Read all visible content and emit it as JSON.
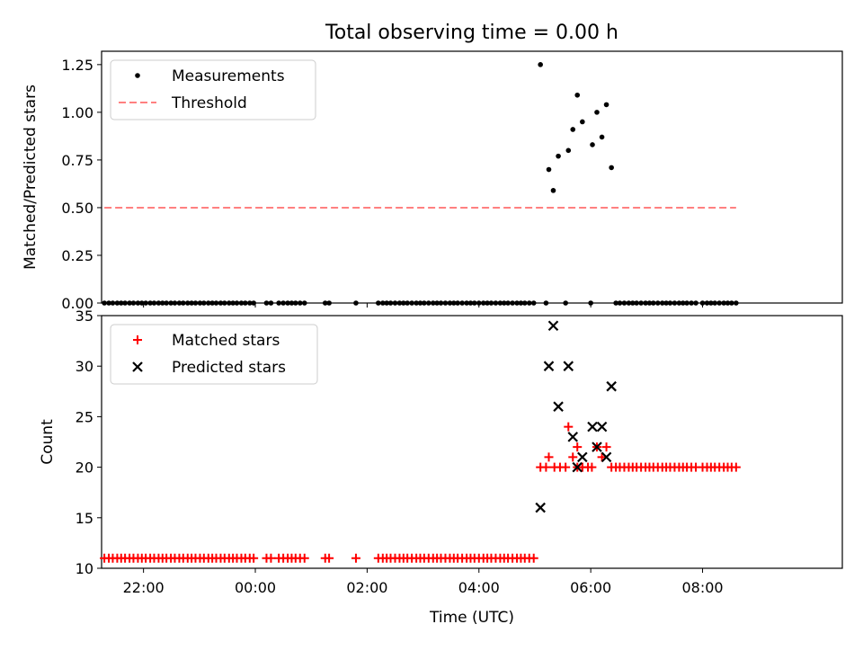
{
  "title": "Total observing time = 0.00 h",
  "colors": {
    "threshold": "#ff8080",
    "matched": "#ff0000",
    "predicted": "#000000",
    "measurement": "#000000"
  },
  "chart_data": [
    {
      "type": "scatter",
      "ylabel": "Matched/Predicted stars",
      "xlim": [
        -2.75,
        10.5
      ],
      "ylim": [
        0,
        1.32
      ],
      "xticks": [
        -2,
        0,
        2,
        4,
        6,
        8
      ],
      "yticks": [
        0.0,
        0.25,
        0.5,
        0.75,
        1.0,
        1.25
      ],
      "ytick_labels": [
        "0.00",
        "0.25",
        "0.50",
        "0.75",
        "1.00",
        "1.25"
      ],
      "legend_position": "top-left",
      "series": [
        {
          "name": "Measurements",
          "marker": "dot",
          "zero_x": [
            -2.7,
            -2.62,
            -2.55,
            -2.47,
            -2.4,
            -2.33,
            -2.25,
            -2.18,
            -2.1,
            -2.03,
            -1.96,
            -1.88,
            -1.81,
            -1.73,
            -1.66,
            -1.59,
            -1.51,
            -1.44,
            -1.36,
            -1.29,
            -1.21,
            -1.14,
            -1.07,
            -0.99,
            -0.92,
            -0.84,
            -0.77,
            -0.7,
            -0.62,
            -0.55,
            -0.47,
            -0.4,
            -0.33,
            -0.25,
            -0.18,
            -0.1,
            -0.03,
            0.2,
            0.28,
            0.42,
            0.5,
            0.58,
            0.65,
            0.72,
            0.8,
            0.88,
            1.25,
            1.32,
            1.8,
            2.2,
            2.28,
            2.35,
            2.42,
            2.5,
            2.58,
            2.65,
            2.72,
            2.8,
            2.88,
            2.95,
            3.02,
            3.1,
            3.18,
            3.25,
            3.32,
            3.4,
            3.48,
            3.55,
            3.62,
            3.7,
            3.78,
            3.85,
            3.92,
            4.0,
            4.08,
            4.15,
            4.22,
            4.3,
            4.38,
            4.45,
            4.52,
            4.6,
            4.68,
            4.75,
            4.82,
            4.9,
            4.98,
            5.2,
            5.55,
            6.45,
            6.52,
            6.6,
            6.68,
            6.75,
            6.82,
            6.9,
            6.98,
            7.05,
            7.12,
            7.2,
            7.28,
            7.35,
            7.42,
            7.5,
            7.58,
            7.65,
            7.72,
            7.8,
            7.88,
            8.0,
            8.08,
            8.15,
            8.22,
            8.3,
            8.38,
            8.45,
            8.52,
            8.6
          ],
          "points": [
            [
              5.1,
              1.25
            ],
            [
              5.25,
              0.7
            ],
            [
              5.33,
              0.59
            ],
            [
              5.42,
              0.77
            ],
            [
              5.6,
              0.8
            ],
            [
              5.68,
              0.91
            ],
            [
              5.76,
              1.09
            ],
            [
              5.85,
              0.95
            ],
            [
              6.03,
              0.83
            ],
            [
              6.11,
              1.0
            ],
            [
              6.2,
              0.87
            ],
            [
              6.28,
              1.04
            ],
            [
              6.37,
              0.71
            ],
            [
              6.0,
              0.0
            ]
          ]
        },
        {
          "name": "Threshold",
          "marker": "dashed-line",
          "x": [
            -2.7,
            8.6
          ],
          "y": [
            0.5,
            0.5
          ]
        }
      ]
    },
    {
      "type": "scatter",
      "ylabel": "Count",
      "xlabel": "Time (UTC)",
      "xlim": [
        -2.75,
        10.5
      ],
      "ylim": [
        10,
        35
      ],
      "xticks": [
        -2,
        0,
        2,
        4,
        6,
        8
      ],
      "xtick_labels": [
        "22:00",
        "00:00",
        "02:00",
        "04:00",
        "06:00",
        "08:00"
      ],
      "yticks": [
        10,
        15,
        20,
        25,
        30,
        35
      ],
      "legend_position": "top-left",
      "series": [
        {
          "name": "Matched stars",
          "marker": "plus",
          "const_11_x": [
            -2.7,
            -2.62,
            -2.55,
            -2.47,
            -2.4,
            -2.33,
            -2.25,
            -2.18,
            -2.1,
            -2.03,
            -1.96,
            -1.88,
            -1.81,
            -1.73,
            -1.66,
            -1.59,
            -1.51,
            -1.44,
            -1.36,
            -1.29,
            -1.21,
            -1.14,
            -1.07,
            -0.99,
            -0.92,
            -0.84,
            -0.77,
            -0.7,
            -0.62,
            -0.55,
            -0.47,
            -0.4,
            -0.33,
            -0.25,
            -0.18,
            -0.1,
            -0.03,
            0.2,
            0.28,
            0.42,
            0.5,
            0.58,
            0.65,
            0.72,
            0.8,
            0.88,
            1.25,
            1.32,
            1.8,
            2.2,
            2.28,
            2.35,
            2.42,
            2.5,
            2.58,
            2.65,
            2.72,
            2.8,
            2.88,
            2.95,
            3.02,
            3.1,
            3.18,
            3.25,
            3.32,
            3.4,
            3.48,
            3.55,
            3.62,
            3.7,
            3.78,
            3.85,
            3.92,
            4.0,
            4.08,
            4.15,
            4.22,
            4.3,
            4.38,
            4.45,
            4.52,
            4.6,
            4.68,
            4.75,
            4.82,
            4.9,
            4.98
          ],
          "const_20_x": [
            5.1,
            5.2,
            5.35,
            5.45,
            5.55,
            5.85,
            5.95,
            6.02,
            6.45,
            6.52,
            6.6,
            6.68,
            6.75,
            6.82,
            6.9,
            6.98,
            7.05,
            7.12,
            7.2,
            7.28,
            7.35,
            7.42,
            7.5,
            7.58,
            7.65,
            7.72,
            7.8,
            7.88,
            8.0,
            8.08,
            8.15,
            8.22,
            8.3,
            8.38,
            8.45,
            8.52,
            8.6
          ],
          "points": [
            [
              5.25,
              21
            ],
            [
              5.6,
              24
            ],
            [
              5.68,
              21
            ],
            [
              5.76,
              22
            ],
            [
              5.85,
              20
            ],
            [
              6.11,
              22
            ],
            [
              6.2,
              21
            ],
            [
              6.28,
              22
            ],
            [
              6.37,
              20
            ],
            [
              5.76,
              20
            ]
          ]
        },
        {
          "name": "Predicted stars",
          "marker": "x",
          "points": [
            [
              5.1,
              16
            ],
            [
              5.25,
              30
            ],
            [
              5.33,
              34
            ],
            [
              5.42,
              26
            ],
            [
              5.6,
              30
            ],
            [
              5.68,
              23
            ],
            [
              5.76,
              20
            ],
            [
              5.85,
              21
            ],
            [
              6.03,
              24
            ],
            [
              6.11,
              22
            ],
            [
              6.2,
              24
            ],
            [
              6.28,
              21
            ],
            [
              6.37,
              28
            ]
          ]
        }
      ]
    }
  ]
}
